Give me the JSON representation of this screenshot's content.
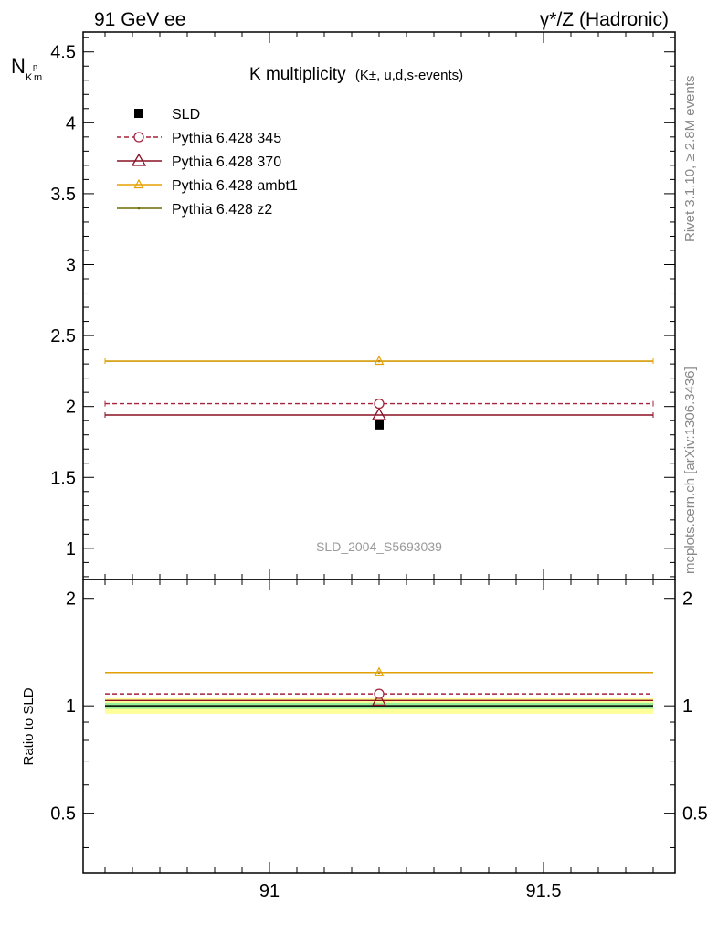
{
  "header": {
    "left": "91 GeV ee",
    "right": "γ*/Z (Hadronic)"
  },
  "side_labels": {
    "rivet": "Rivet 3.1.10, ≥ 2.8M events",
    "mcplots": "mcplots.cern.ch [arXiv:1306.3436]"
  },
  "chart_data": [
    {
      "type": "scatter",
      "title": "K multiplicity",
      "subtitle": "(K±, u,d,s-events)",
      "ylabel": "N_K^pm",
      "watermark": "SLD_2004_S5693039",
      "xlim": [
        90.66,
        91.74
      ],
      "ylim": [
        0.78,
        4.64
      ],
      "x_ticks": [
        "91",
        "91.5"
      ],
      "y_ticks": [
        "1",
        "1.5",
        "2",
        "2.5",
        "3",
        "3.5",
        "4",
        "4.5"
      ],
      "x_range": [
        90.7,
        91.7
      ],
      "x_center": 91.2,
      "grid": false,
      "legend_position": "top-left",
      "series": [
        {
          "name": "SLD",
          "value": 1.87,
          "error": 0.01,
          "marker": "filled-square",
          "color": "#000000",
          "line": "none"
        },
        {
          "name": "Pythia 6.428 345",
          "value": 2.02,
          "marker": "open-circle",
          "color": "#a5233c",
          "line": "dashed"
        },
        {
          "name": "Pythia 6.428 370",
          "value": 1.94,
          "marker": "open-triangle",
          "color": "#8b1024",
          "line": "solid"
        },
        {
          "name": "Pythia 6.428 ambt1",
          "value": 2.32,
          "marker": "open-triangle-small",
          "color": "#e5a000",
          "line": "solid"
        },
        {
          "name": "Pythia 6.428 z2",
          "value": 2.32,
          "marker": "dot",
          "color": "#6b6b00",
          "line": "solid"
        }
      ]
    },
    {
      "type": "scatter",
      "ylabel": "Ratio to SLD",
      "ylim": [
        0.34,
        2.26
      ],
      "y_ticks": [
        "0.5",
        "1",
        "2"
      ],
      "y_scale": "log",
      "reference": 1.0,
      "band_green": [
        0.98,
        1.02
      ],
      "band_yellow": [
        0.95,
        1.05
      ],
      "series": [
        {
          "name": "Pythia 6.428 345",
          "value": 1.08
        },
        {
          "name": "Pythia 6.428 370",
          "value": 1.035
        },
        {
          "name": "Pythia 6.428 ambt1",
          "value": 1.24
        },
        {
          "name": "Pythia 6.428 z2",
          "value": 1.24
        }
      ]
    }
  ]
}
